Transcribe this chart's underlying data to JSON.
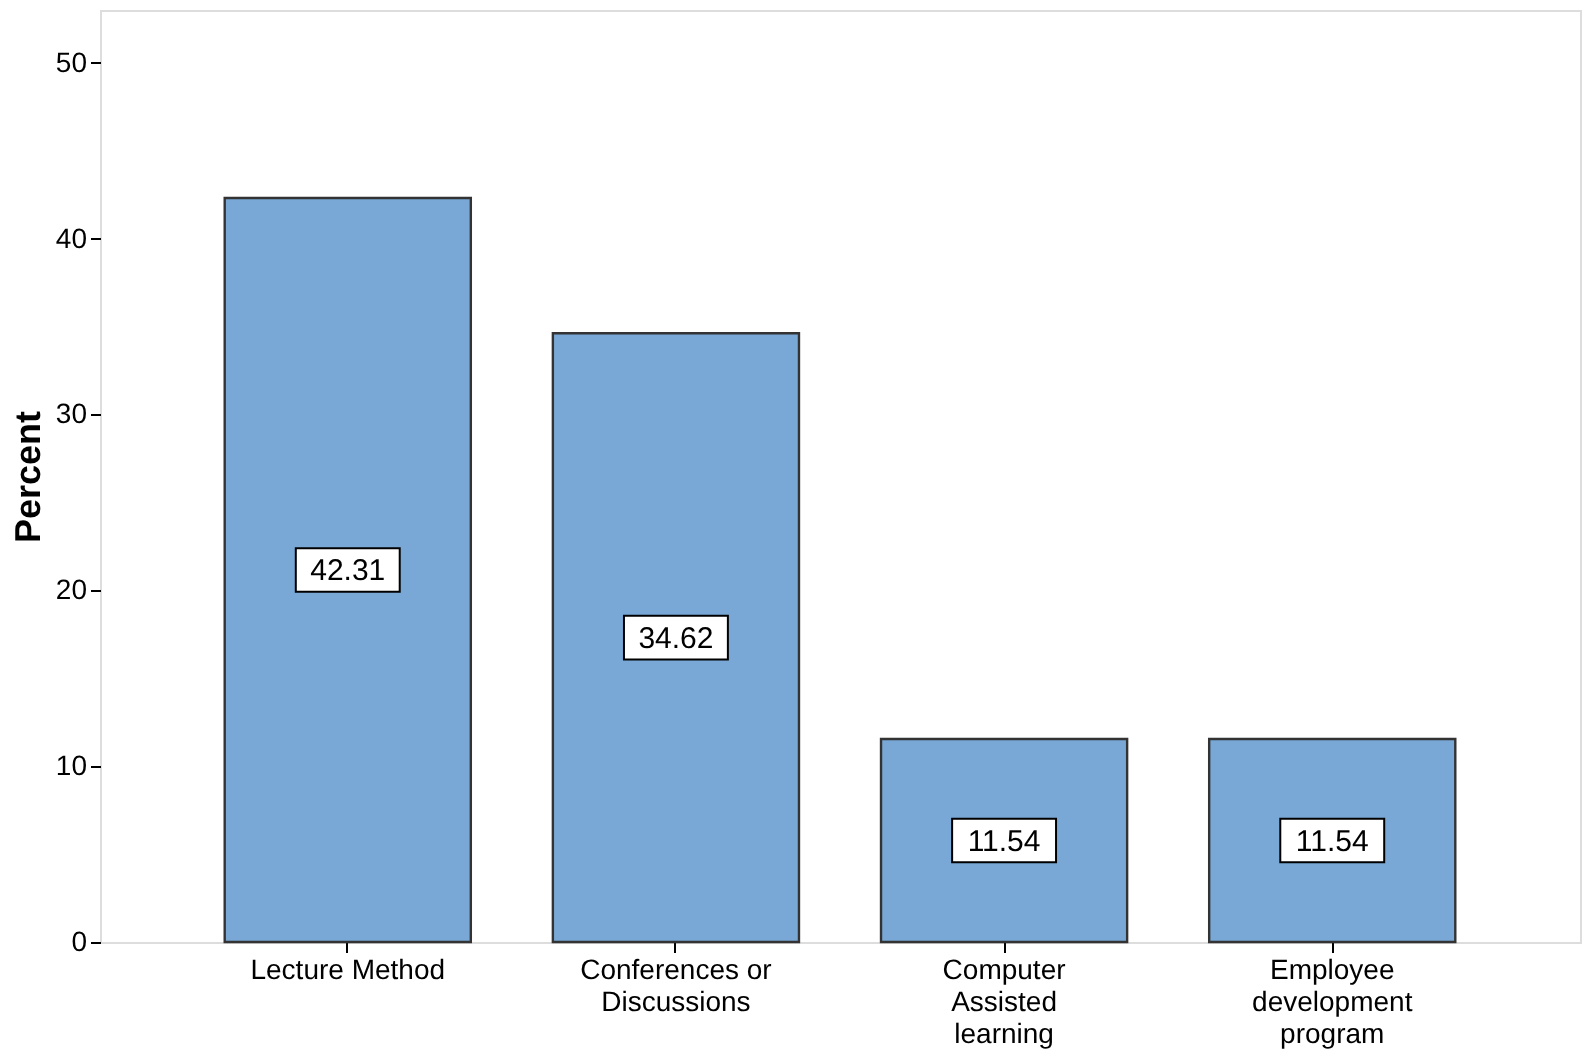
{
  "chart_data": {
    "type": "bar",
    "ylabel": "Percent",
    "categories": [
      "Lecture Method",
      "Conferences or Discussions",
      "Computer Assisted learning",
      "Employee development program"
    ],
    "values": [
      42.31,
      34.62,
      11.54,
      11.54
    ],
    "color": "#79a8d6",
    "ylim": [
      0,
      53
    ],
    "yticks": [
      0,
      10,
      20,
      30,
      40,
      50
    ],
    "grid": false,
    "data_labels": true
  }
}
